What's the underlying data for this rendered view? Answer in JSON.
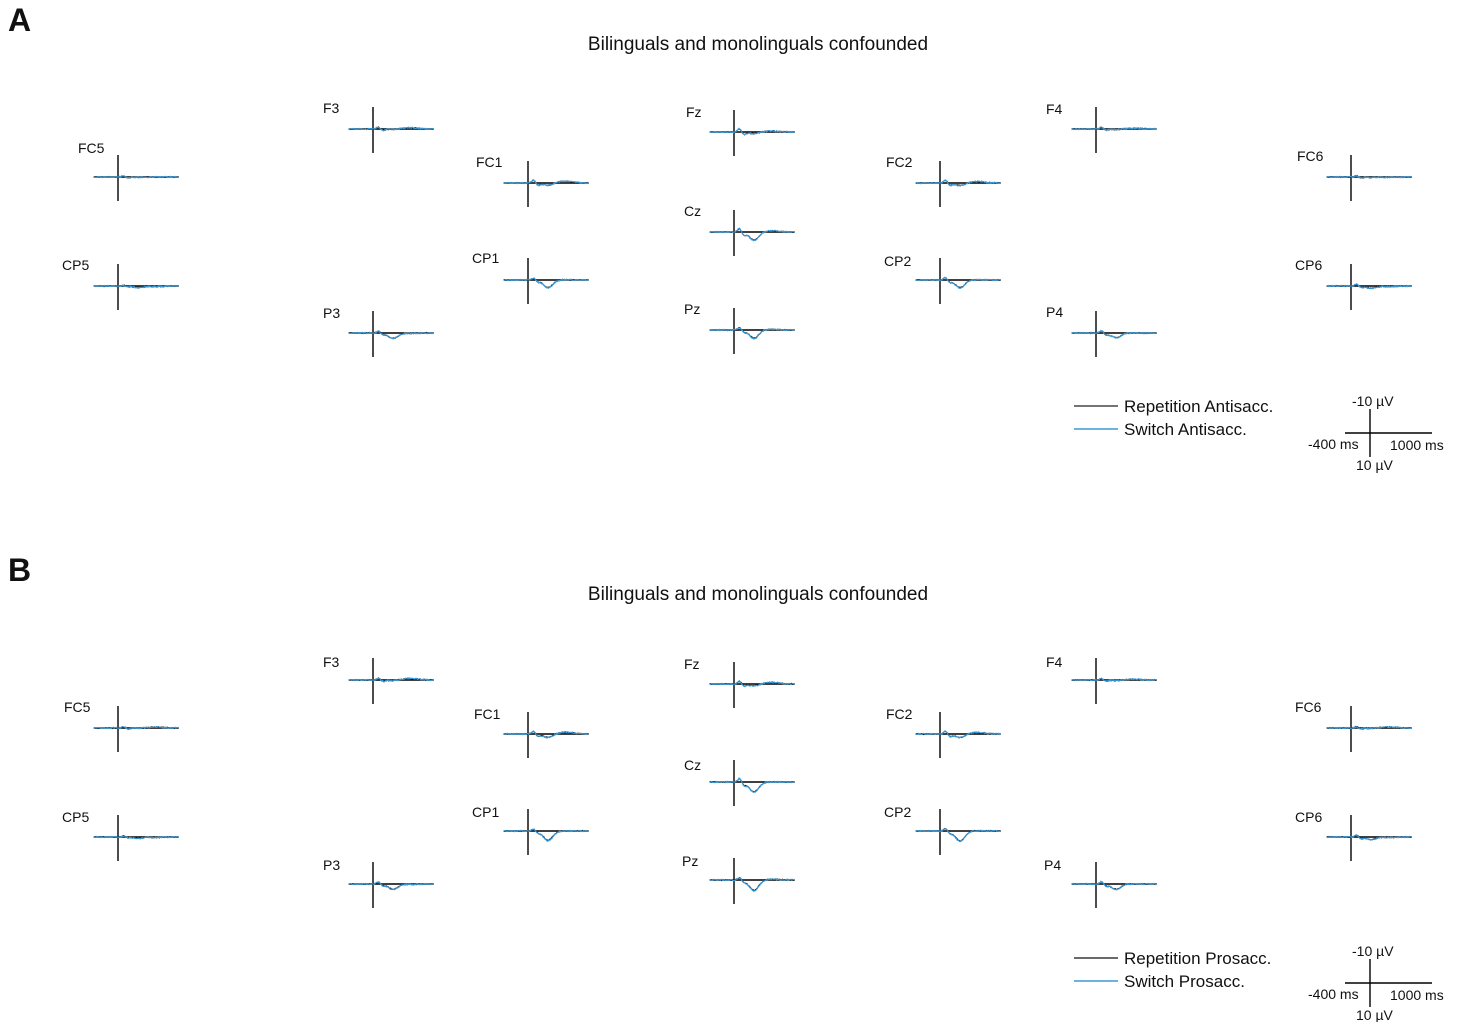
{
  "chart_data": [
    {
      "type": "line",
      "panel": "A",
      "title": "Bilinguals and monolinguals confounded",
      "electrodes": [
        "FC5",
        "F3",
        "FC1",
        "Fz",
        "Cz",
        "FC2",
        "F4",
        "FC6",
        "CP5",
        "P3",
        "CP1",
        "Pz",
        "CP2",
        "P4",
        "CP6"
      ],
      "x_range_ms": [
        -400,
        1000
      ],
      "y_range_uV": [
        -10,
        10
      ],
      "y_inverted": true,
      "series": [
        {
          "name": "Repetition Antisacc.",
          "color": "#222222"
        },
        {
          "name": "Switch Antisacc.",
          "color": "#3a9ad9"
        }
      ],
      "scale_bar": {
        "y_top": "-10 µV",
        "y_bottom": "10 µV",
        "x_left": "-400 ms",
        "x_right": "1000 ms"
      }
    },
    {
      "type": "line",
      "panel": "B",
      "title": "Bilinguals and monolinguals confounded",
      "electrodes": [
        "FC5",
        "F3",
        "FC1",
        "Fz",
        "Cz",
        "FC2",
        "F4",
        "FC6",
        "CP5",
        "P3",
        "CP1",
        "Pz",
        "CP2",
        "P4",
        "CP6"
      ],
      "x_range_ms": [
        -400,
        1000
      ],
      "y_range_uV": [
        -10,
        10
      ],
      "y_inverted": true,
      "series": [
        {
          "name": "Repetition Prosacc.",
          "color": "#111111"
        },
        {
          "name": "Switch Prosacc.",
          "color": "#3a9ad9"
        }
      ],
      "scale_bar": {
        "y_top": "-10 µV",
        "y_bottom": "10 µV",
        "x_left": "-400 ms",
        "x_right": "1000 ms"
      }
    }
  ],
  "panels": {
    "A": {
      "letter": "A",
      "title": "Bilinguals and monolinguals confounded"
    },
    "B": {
      "letter": "B",
      "title": "Bilinguals and monolinguals confounded"
    }
  }
}
